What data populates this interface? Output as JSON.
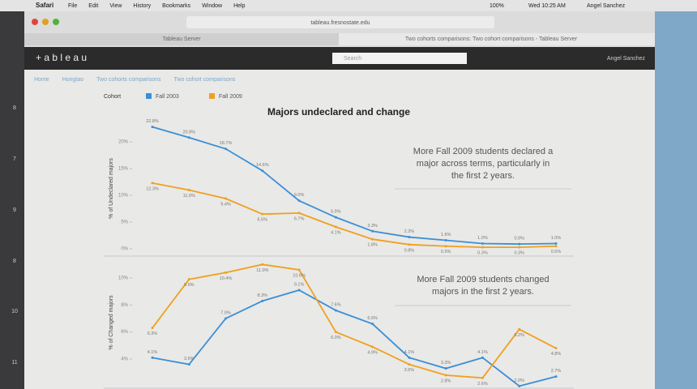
{
  "menu": {
    "app": "Safari",
    "items": [
      "File",
      "Edit",
      "View",
      "History",
      "Bookmarks",
      "Window",
      "Help"
    ],
    "battery": "100%",
    "clock": "Wed 10:25 AM",
    "user": "Angel Sanchez"
  },
  "browser": {
    "url": "tableau.fresnostate.edu",
    "tabs": [
      "Tableau Server",
      "Two cohorts comparisons: Two cohort comparisons - Tableau Server"
    ]
  },
  "tableau": {
    "logo": "+ a b l e a u",
    "search": "Search",
    "user": "Angel Sanchez",
    "breadcrumbs": [
      "Home",
      "Hongtao",
      "Two cohorts comparisons",
      "Two cohort comparisons"
    ]
  },
  "side_numbers": [
    "8",
    "7",
    "9",
    "8",
    "10",
    "11"
  ],
  "legend": {
    "title": "Cohort",
    "items": [
      {
        "name": "Fall 2003",
        "color": "#3a8fd6"
      },
      {
        "name": "Fall 2009",
        "color": "#f0a020"
      }
    ]
  },
  "title": "Majors undeclared and change",
  "chart_data": [
    {
      "type": "line",
      "y_label": "% of Undeclared majors",
      "annotation_lines": [
        "More Fall 2009 students declared a",
        "major across terms, particularly in",
        "the first 2 years."
      ],
      "ylim": [
        -1.2,
        23.8
      ],
      "yticks": [
        {
          "value": 0,
          "label": "0%"
        },
        {
          "value": 5,
          "label": "5%"
        },
        {
          "value": 10,
          "label": "10%"
        },
        {
          "value": 15,
          "label": "15%"
        },
        {
          "value": 20,
          "label": "20%"
        }
      ],
      "series": [
        {
          "name": "Fall 2003",
          "color": "#3a8fd6",
          "values": [
            22.8,
            20.8,
            18.7,
            14.6,
            9.0,
            5.9,
            3.3,
            2.2,
            1.6,
            1.0,
            0.9,
            1.0
          ],
          "value_labels": [
            "22.8%",
            "20.8%",
            "18.7%",
            "14.6%",
            "9.0%",
            "5.9%",
            "3.3%",
            "2.2%",
            "1.6%",
            "1.0%",
            "0.9%",
            "1.0%"
          ]
        },
        {
          "name": "Fall 2009",
          "color": "#f0a020",
          "values": [
            12.3,
            11.0,
            9.4,
            6.5,
            6.7,
            4.1,
            1.8,
            0.8,
            0.5,
            0.3,
            0.3,
            0.5
          ],
          "value_labels": [
            "12.3%",
            "11.0%",
            "9.4%",
            "6.5%",
            "6.7%",
            "4.1%",
            "1.8%",
            "0.8%",
            "0.5%",
            "0.3%",
            "0.3%",
            "0.5%"
          ]
        }
      ]
    },
    {
      "type": "line",
      "y_label": "% of Changed majors",
      "annotation_lines": [
        "More Fall 2009 students changed",
        "majors in the first 2 years."
      ],
      "ylim": [
        1.9,
        11.5
      ],
      "yticks": [
        {
          "value": 4,
          "label": "4%"
        },
        {
          "value": 6,
          "label": "6%"
        },
        {
          "value": 8,
          "label": "8%"
        },
        {
          "value": 10,
          "label": "10%"
        }
      ],
      "series": [
        {
          "name": "Fall 2003",
          "color": "#3a8fd6",
          "values": [
            4.1,
            3.6,
            7.0,
            8.3,
            9.1,
            7.6,
            6.6,
            4.1,
            3.3,
            4.1,
            2.0,
            2.7
          ],
          "value_labels": [
            "4.1%",
            "3.6%",
            "7.0%",
            "8.3%",
            "9.1%",
            "7.6%",
            "6.6%",
            "4.1%",
            "3.3%",
            "4.1%",
            "2.0%",
            "2.7%"
          ]
        },
        {
          "name": "Fall 2009",
          "color": "#f0a020",
          "values": [
            6.3,
            9.9,
            10.4,
            11.0,
            10.6,
            6.0,
            4.9,
            3.6,
            2.8,
            2.6,
            6.2,
            4.8
          ],
          "value_labels": [
            "6.3%",
            "9.9%",
            "10.4%",
            "11.0%",
            "10.6%",
            "6.0%",
            "4.9%",
            "3.6%",
            "2.8%",
            "2.6%",
            "6.2%",
            "4.8%"
          ]
        }
      ]
    }
  ]
}
